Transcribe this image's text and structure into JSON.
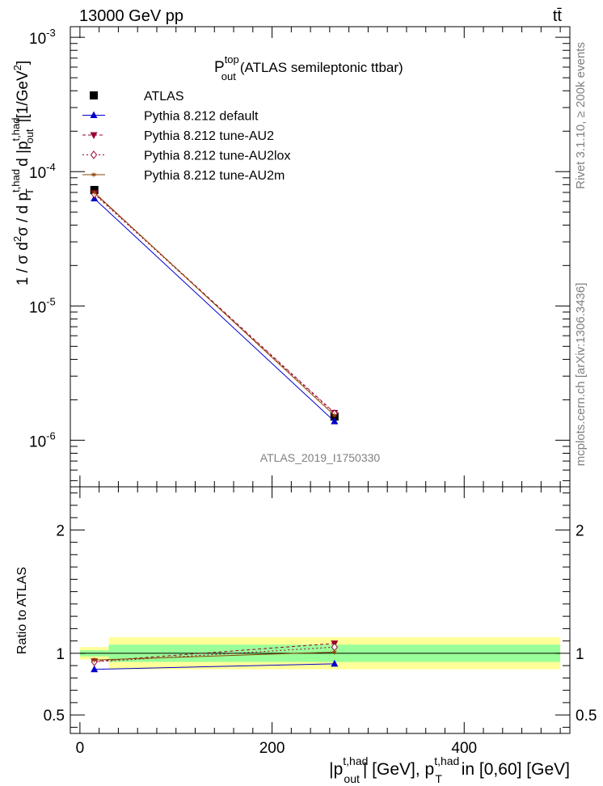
{
  "header": {
    "left": "13000 GeV pp",
    "right": "tt̄"
  },
  "side_labels": {
    "rivet": "Rivet 3.1.10, ≥ 200k events",
    "source": "mcplots.cern.ch [arXiv:1306.3436]"
  },
  "colors": {
    "atlas": "#000000",
    "default": "#0000cc",
    "au2": "#990033",
    "au2lox": "#990033",
    "au2m": "#8b4500",
    "band_inner": "#99ff99",
    "band_outer": "#ffff99"
  },
  "chart_data": [
    {
      "type": "line",
      "title": "P",
      "title_sup": "top",
      "title_sub": "out",
      "title_rest": "(ATLAS semileptonic ttbar)",
      "watermark": "ATLAS_2019_I1750330",
      "ylabel": "1 / σ d²σ / d p_T^{t,had} d |p_out^{t,had}| [1/GeV²]",
      "yscale": "log",
      "ylim": [
        4.5e-07,
        0.0012
      ],
      "xlim": [
        -10,
        510
      ],
      "ytick_labels": [
        {
          "base": "10",
          "exp": "-6"
        },
        {
          "base": "10",
          "exp": "-5"
        },
        {
          "base": "10",
          "exp": "-4"
        },
        {
          "base": "10",
          "exp": "-3"
        }
      ],
      "legend_position": "top-left",
      "series": [
        {
          "name": "ATLAS",
          "x": [
            15,
            265
          ],
          "y": [
            7.3e-05,
            1.5e-06
          ]
        },
        {
          "name": "Pythia 8.212 default",
          "x": [
            15,
            265
          ],
          "y": [
            6.3e-05,
            1.38e-06
          ]
        },
        {
          "name": "Pythia 8.212 tune-AU2",
          "x": [
            15,
            265
          ],
          "y": [
            6.9e-05,
            1.6e-06
          ]
        },
        {
          "name": "Pythia 8.212 tune-AU2lox",
          "x": [
            15,
            265
          ],
          "y": [
            6.8e-05,
            1.58e-06
          ]
        },
        {
          "name": "Pythia 8.212 tune-AU2m",
          "x": [
            15,
            265
          ],
          "y": [
            7e-05,
            1.53e-06
          ]
        }
      ]
    },
    {
      "type": "line",
      "ylabel": "Ratio to ATLAS",
      "ylim": [
        0.35,
        2.35
      ],
      "xlim": [
        -10,
        510
      ],
      "yticks": [
        0.5,
        1,
        2
      ],
      "ytick_labels": [
        "0.5",
        "1",
        "2"
      ],
      "xticks": [
        0,
        200,
        400
      ],
      "xtick_labels": [
        "0",
        "200",
        "400"
      ],
      "xlabel_parts": {
        "a": "|p",
        "a_sup": "t,had",
        "a_sub": "out",
        "b": "| [GeV], p",
        "b_sup": "t,had",
        "b_sub": "T",
        "c": " in [0,60] [GeV]"
      },
      "bands": [
        {
          "x": [
            0,
            30
          ],
          "inner": [
            0.975,
            1.025
          ],
          "outer": [
            0.95,
            1.05
          ]
        },
        {
          "x": [
            30,
            500
          ],
          "inner": [
            0.93,
            1.07
          ],
          "outer": [
            0.87,
            1.13
          ]
        }
      ],
      "series": [
        {
          "name": "Pythia 8.212 default",
          "x": [
            15,
            265
          ],
          "y": [
            0.87,
            0.915
          ]
        },
        {
          "name": "Pythia 8.212 tune-AU2",
          "x": [
            15,
            265
          ],
          "y": [
            0.935,
            1.08
          ]
        },
        {
          "name": "Pythia 8.212 tune-AU2lox",
          "x": [
            15,
            265
          ],
          "y": [
            0.93,
            1.05
          ]
        },
        {
          "name": "Pythia 8.212 tune-AU2m",
          "x": [
            15,
            265
          ],
          "y": [
            0.945,
            1.01
          ]
        }
      ]
    }
  ]
}
